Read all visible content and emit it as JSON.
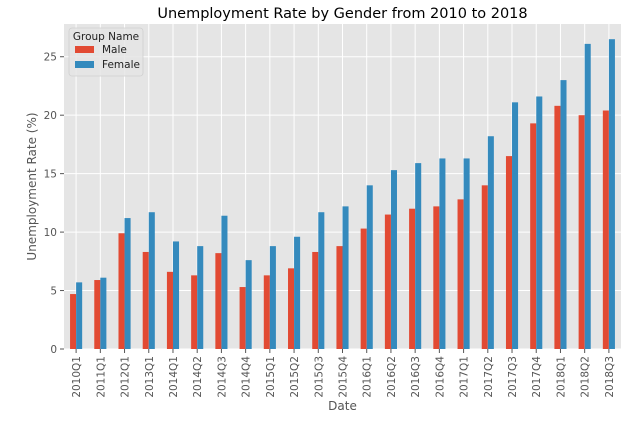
{
  "chart_data": {
    "type": "bar",
    "title": "Unemployment Rate by Gender from 2010 to 2018",
    "xlabel": "Date",
    "ylabel": "Unemployment Rate (%)",
    "categories": [
      "2010Q1",
      "2011Q1",
      "2012Q1",
      "2013Q1",
      "2014Q1",
      "2014Q2",
      "2014Q3",
      "2014Q4",
      "2015Q1",
      "2015Q2",
      "2015Q3",
      "2015Q4",
      "2016Q1",
      "2016Q2",
      "2016Q3",
      "2016Q4",
      "2017Q1",
      "2017Q2",
      "2017Q3",
      "2017Q4",
      "2018Q1",
      "2018Q2",
      "2018Q3"
    ],
    "series": [
      {
        "name": "Male",
        "color": "#E24A33",
        "values": [
          4.7,
          5.9,
          9.9,
          8.3,
          6.6,
          6.3,
          8.2,
          5.3,
          6.3,
          6.9,
          8.3,
          8.8,
          10.3,
          11.5,
          12.0,
          12.2,
          12.8,
          14.0,
          16.5,
          19.3,
          20.8,
          20.0,
          20.4
        ]
      },
      {
        "name": "Female",
        "color": "#348ABD",
        "values": [
          5.7,
          6.1,
          11.2,
          11.7,
          9.2,
          8.8,
          11.4,
          7.6,
          8.8,
          9.6,
          11.7,
          12.2,
          14.0,
          15.3,
          15.9,
          16.3,
          16.3,
          18.2,
          21.1,
          21.6,
          23.0,
          26.1,
          26.5
        ]
      }
    ],
    "ylim": [
      0,
      27.8
    ],
    "yticks": [
      0,
      5,
      10,
      15,
      20,
      25
    ],
    "legend": {
      "title": "Group Name",
      "placement": "top-left"
    },
    "grid": true,
    "style": {
      "background": "#E5E5E5",
      "grid_color": "#FFFFFF"
    }
  }
}
